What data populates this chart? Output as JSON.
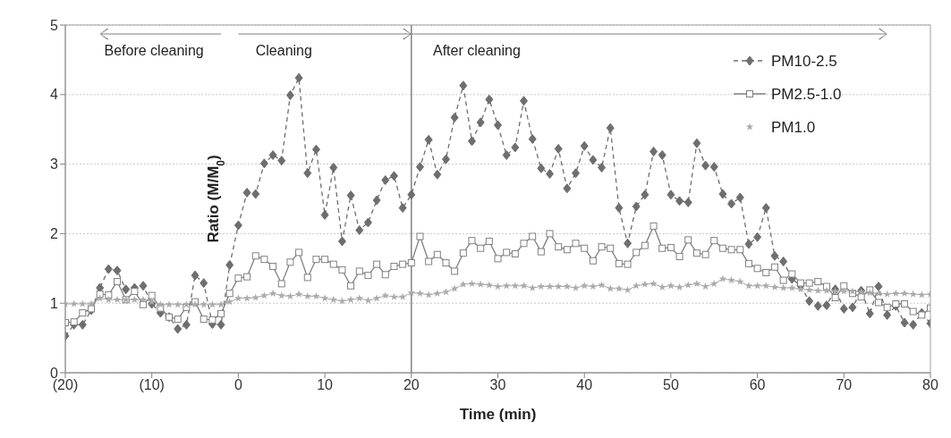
{
  "chart_data": {
    "type": "line",
    "xlabel": "Time (min)",
    "ylabel": "Ratio (M/M$_{0}$)",
    "x": [
      -20,
      -19,
      -18,
      -17,
      -16,
      -15,
      -14,
      -13,
      -12,
      -11,
      -10,
      -9,
      -8,
      -7,
      -6,
      -5,
      -4,
      -3,
      -2,
      -1,
      0,
      1,
      2,
      3,
      4,
      5,
      6,
      7,
      8,
      9,
      10,
      11,
      12,
      13,
      14,
      15,
      16,
      17,
      18,
      19,
      20,
      21,
      22,
      23,
      24,
      25,
      26,
      27,
      28,
      29,
      30,
      31,
      32,
      33,
      34,
      35,
      36,
      37,
      38,
      39,
      40,
      41,
      42,
      43,
      44,
      45,
      46,
      47,
      48,
      49,
      50,
      51,
      52,
      53,
      54,
      55,
      56,
      57,
      58,
      59,
      60,
      61,
      62,
      63,
      64,
      65,
      66,
      67,
      68,
      69,
      70,
      71,
      72,
      73,
      74,
      75,
      76,
      77,
      78,
      79,
      80
    ],
    "series": [
      {
        "name": "PM10-2.5",
        "color": "#6e6e6e",
        "marker": "diamond",
        "line_style": "dashed",
        "values": [
          0.53,
          0.69,
          0.69,
          0.9,
          1.22,
          1.49,
          1.47,
          1.2,
          1.22,
          1.25,
          0.99,
          0.86,
          0.8,
          0.63,
          0.69,
          1.4,
          1.29,
          0.7,
          0.69,
          1.55,
          2.12,
          2.59,
          2.57,
          3.01,
          3.13,
          3.05,
          3.99,
          4.24,
          2.87,
          3.21,
          2.27,
          2.95,
          1.89,
          2.55,
          2.05,
          2.16,
          2.48,
          2.77,
          2.83,
          2.37,
          2.56,
          2.96,
          3.35,
          2.85,
          3.07,
          3.67,
          4.13,
          3.33,
          3.6,
          3.93,
          3.56,
          3.13,
          3.24,
          3.91,
          3.36,
          2.94,
          2.86,
          3.22,
          2.65,
          2.87,
          3.26,
          3.06,
          2.95,
          3.52,
          2.37,
          1.86,
          2.39,
          2.56,
          3.18,
          3.13,
          2.56,
          2.47,
          2.45,
          3.3,
          2.98,
          2.96,
          2.57,
          2.43,
          2.52,
          1.85,
          1.95,
          2.37,
          1.68,
          1.6,
          1.35,
          1.25,
          1.03,
          0.96,
          0.97,
          1.2,
          0.92,
          0.94,
          1.18,
          0.85,
          1.24,
          0.83,
          0.96,
          0.72,
          0.69,
          0.86,
          0.71
        ]
      },
      {
        "name": "PM2.5-1.0",
        "color": "#808080",
        "marker": "square",
        "line_style": "solid",
        "values": [
          0.72,
          0.73,
          0.86,
          0.92,
          1.13,
          1.12,
          1.31,
          1.05,
          1.17,
          0.98,
          1.11,
          0.93,
          0.8,
          0.77,
          0.94,
          1.02,
          0.77,
          0.76,
          0.85,
          1.14,
          1.36,
          1.38,
          1.68,
          1.63,
          1.53,
          1.28,
          1.59,
          1.73,
          1.37,
          1.63,
          1.63,
          1.56,
          1.48,
          1.25,
          1.46,
          1.4,
          1.56,
          1.41,
          1.53,
          1.56,
          1.58,
          1.96,
          1.6,
          1.7,
          1.58,
          1.46,
          1.72,
          1.9,
          1.79,
          1.89,
          1.64,
          1.73,
          1.71,
          1.86,
          1.96,
          1.74,
          2.0,
          1.81,
          1.77,
          1.86,
          1.79,
          1.61,
          1.81,
          1.79,
          1.57,
          1.56,
          1.73,
          1.83,
          2.11,
          1.79,
          1.8,
          1.67,
          1.91,
          1.72,
          1.7,
          1.9,
          1.79,
          1.77,
          1.77,
          1.57,
          1.5,
          1.44,
          1.52,
          1.33,
          1.42,
          1.29,
          1.29,
          1.31,
          1.24,
          1.08,
          1.25,
          1.14,
          1.09,
          1.19,
          1.01,
          0.94,
          0.99,
          0.99,
          0.88,
          0.83,
          0.93
        ]
      },
      {
        "name": "PM1.0",
        "color": "#ababab",
        "marker": "star",
        "line_style": "solid",
        "values": [
          0.99,
          0.99,
          0.99,
          0.99,
          1.07,
          1.05,
          1.05,
          1.05,
          1.05,
          1.05,
          1.02,
          0.98,
          0.98,
          0.98,
          0.98,
          0.98,
          0.98,
          0.98,
          0.98,
          1.02,
          1.07,
          1.07,
          1.08,
          1.11,
          1.14,
          1.11,
          1.1,
          1.13,
          1.1,
          1.1,
          1.07,
          1.05,
          1.03,
          1.05,
          1.07,
          1.04,
          1.07,
          1.11,
          1.09,
          1.09,
          1.15,
          1.14,
          1.12,
          1.14,
          1.16,
          1.21,
          1.27,
          1.28,
          1.27,
          1.26,
          1.24,
          1.25,
          1.25,
          1.25,
          1.22,
          1.24,
          1.24,
          1.24,
          1.24,
          1.22,
          1.25,
          1.24,
          1.26,
          1.21,
          1.21,
          1.19,
          1.25,
          1.27,
          1.28,
          1.23,
          1.25,
          1.23,
          1.26,
          1.28,
          1.24,
          1.28,
          1.35,
          1.33,
          1.31,
          1.25,
          1.25,
          1.25,
          1.23,
          1.22,
          1.22,
          1.2,
          1.19,
          1.18,
          1.18,
          1.17,
          1.17,
          1.17,
          1.16,
          1.15,
          1.14,
          1.13,
          1.14,
          1.14,
          1.13,
          1.12,
          1.13
        ]
      }
    ],
    "xlim": [
      -20,
      80
    ],
    "xticks": [
      {
        "value": -20,
        "label": "(20)"
      },
      {
        "value": -10,
        "label": "(10)"
      },
      0,
      10,
      20,
      30,
      40,
      50,
      60,
      70,
      80
    ],
    "ylim": [
      0,
      5
    ],
    "yticks": [
      0,
      1,
      2,
      3,
      4,
      5
    ],
    "grid": "y",
    "legend": "top right",
    "ref_lines": [
      {
        "axis": "x",
        "value": 20,
        "color": "#808080"
      }
    ],
    "annotations": [
      "Before cleaning",
      "Cleaning",
      "After cleaning"
    ]
  }
}
